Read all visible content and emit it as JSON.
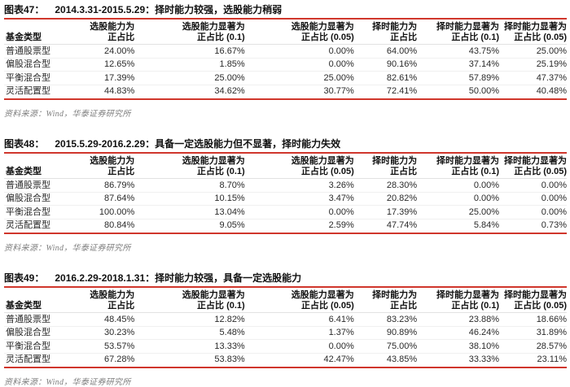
{
  "colors": {
    "accent": "#d0362c",
    "text": "#1c1c1c",
    "source_text": "#7e7e7e"
  },
  "columns": {
    "fund_type": "基金类型",
    "cols": [
      {
        "l1": "选股能力为",
        "l2": "正占比"
      },
      {
        "l1": "选股能力显著为",
        "l2": "正占比 (0.1)"
      },
      {
        "l1": "选股能力显著为",
        "l2": "正占比 (0.05)"
      },
      {
        "l1": "择时能力为",
        "l2": "正占比"
      },
      {
        "l1": "择时能力显著为",
        "l2": "正占比 (0.1)"
      },
      {
        "l1": "择时能力显著为",
        "l2": "正占比 (0.05)"
      }
    ]
  },
  "tables": [
    {
      "figure_label": "图表47：",
      "title": "2014.3.31-2015.5.29：择时能力较强，选股能力稍弱",
      "rows": [
        [
          "普通股票型",
          "24.00%",
          "16.67%",
          "0.00%",
          "64.00%",
          "43.75%",
          "25.00%"
        ],
        [
          "偏股混合型",
          "12.65%",
          "1.85%",
          "0.00%",
          "90.16%",
          "37.14%",
          "25.19%"
        ],
        [
          "平衡混合型",
          "17.39%",
          "25.00%",
          "25.00%",
          "82.61%",
          "57.89%",
          "47.37%"
        ],
        [
          "灵活配置型",
          "44.83%",
          "34.62%",
          "30.77%",
          "72.41%",
          "50.00%",
          "40.48%"
        ]
      ],
      "source": "资料来源：Wind，华泰证券研究所"
    },
    {
      "figure_label": "图表48：",
      "title": "2015.5.29-2016.2.29：具备一定选股能力但不显著，择时能力失效",
      "rows": [
        [
          "普通股票型",
          "86.79%",
          "8.70%",
          "3.26%",
          "28.30%",
          "0.00%",
          "0.00%"
        ],
        [
          "偏股混合型",
          "87.64%",
          "10.15%",
          "3.47%",
          "20.82%",
          "0.00%",
          "0.00%"
        ],
        [
          "平衡混合型",
          "100.00%",
          "13.04%",
          "0.00%",
          "17.39%",
          "25.00%",
          "0.00%"
        ],
        [
          "灵活配置型",
          "80.84%",
          "9.05%",
          "2.59%",
          "47.74%",
          "5.84%",
          "0.73%"
        ]
      ],
      "source": "资料来源：Wind，华泰证券研究所"
    },
    {
      "figure_label": "图表49：",
      "title": "2016.2.29-2018.1.31：择时能力较强，具备一定选股能力",
      "rows": [
        [
          "普通股票型",
          "48.45%",
          "12.82%",
          "6.41%",
          "83.23%",
          "23.88%",
          "18.66%"
        ],
        [
          "偏股混合型",
          "30.23%",
          "5.48%",
          "1.37%",
          "90.89%",
          "46.24%",
          "31.89%"
        ],
        [
          "平衡混合型",
          "53.57%",
          "13.33%",
          "0.00%",
          "75.00%",
          "38.10%",
          "28.57%"
        ],
        [
          "灵活配置型",
          "67.28%",
          "53.83%",
          "42.47%",
          "43.85%",
          "33.33%",
          "23.11%"
        ]
      ],
      "source": "资料来源：Wind，华泰证券研究所"
    }
  ]
}
